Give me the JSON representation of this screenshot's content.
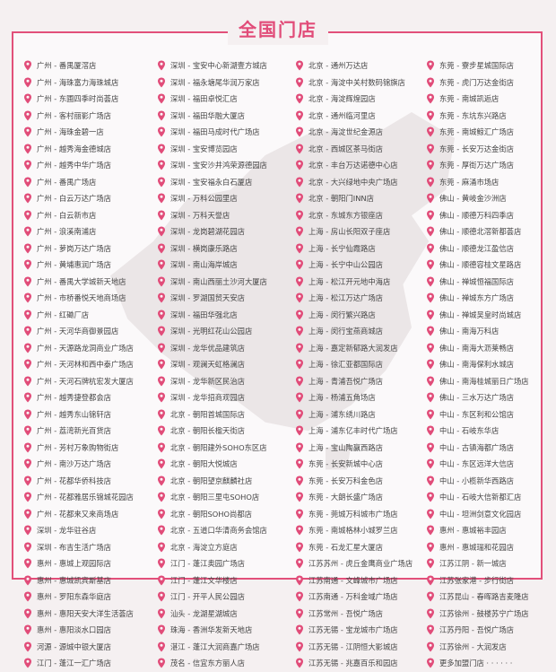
{
  "title": "全国门店",
  "icon": "map-pin-icon",
  "colors": {
    "accent": "#e14c79",
    "text": "#444444",
    "map": "#e9e4e5"
  },
  "columns": [
    [
      "广州 - 番禺厦滘店",
      "广州 - 海珠富力海珠城店",
      "广州 - 东圃四季时尚荟店",
      "广州 - 客村丽影广场店",
      "广州 - 海珠金碧一店",
      "广州 - 越秀海金德城店",
      "广州 - 越秀中华广场店",
      "广州 - 番禺广场店",
      "广州 - 白云万达广场店",
      "广州 - 白云新市店",
      "广州 - 浪溪南浦店",
      "广州 - 萝岗万达广场店",
      "广州 - 黄埔惠润广场店",
      "广州 - 番禺大学城新天地店",
      "广州 - 市桥番悦天地商场店",
      "广州 - 红磡厂店",
      "广州 - 天河华商御景园店",
      "广州 - 天源路龙洞商业广场店",
      "广州 - 天河林和西中泰广场店",
      "广州 - 天河石牌杭宏发大厦店",
      "广州 - 越秀捷登都会店",
      "广州 - 越秀东山锦轩店",
      "广州 - 荔湾新光百货店",
      "广州 - 芳村万象购物街店",
      "广州 - 南沙万达广场店",
      "广州 - 花都华侨科技店",
      "广州 - 花都雅居乐锦城花园店",
      "广州 - 花都来又来商场店",
      "深圳 - 龙华驻谷店",
      "深圳 - 布吉生活广场店",
      "惠州 - 惠城上观园际店",
      "惠州 - 惠城凯宾斯基店",
      "惠州 - 罗阳东森华庭店",
      "惠州 - 惠阳天安大洋生活荟店",
      "惠州 - 惠阳淡水口园店",
      "河源 - 源城中银大厦店",
      "江门 - 蓬江一汇广场店"
    ],
    [
      "深圳 - 宝安中心新湖壹方城店",
      "深圳 - 福永塘尾华润万家店",
      "深圳 - 福田卓悦汇店",
      "深圳 - 福田华融大厦店",
      "深圳 - 福田马成时代广场店",
      "深圳 - 宝安博览园店",
      "深圳 - 宝安沙井鸿荣源德园店",
      "深圳 - 宝安福永白石厦店",
      "深圳 - 万科公园里店",
      "深圳 - 万科天誉店",
      "深圳 - 龙岗碧湖花园店",
      "深圳 - 横岗康乐路店",
      "深圳 - 南山海岸城店",
      "深圳 - 南山西丽土沙河大厦店",
      "深圳 - 罗湖国贸天安店",
      "深圳 - 福田华强北店",
      "深圳 - 光明红花山公园店",
      "深圳 - 龙华优品建筑店",
      "深圳 - 观澜天虹格澜店",
      "深圳 - 龙华新区民治店",
      "深圳 - 龙华招商观园店",
      "北京 - 朝阳首城国际店",
      "北京 - 朝阳长楹天街店",
      "北京 - 朝阳建外SOHO东区店",
      "北京 - 朝阳大悦城店",
      "北京 - 朝阳望京麒麟社店",
      "北京 - 朝阳三里屯SOHO店",
      "北京 - 朝阳SOHO尚都店",
      "北京 - 五道口华清商务会馆店",
      "北京 - 海淀立方庭店",
      "江门 - 蓬江奥园广场店",
      "江门 - 蓬江文华楼店",
      "江门 - 开平人民公园店",
      "汕头 - 龙湖星湖城店",
      "珠海 - 香洲华发新天地店",
      "湛江 - 蓬江大润商嘉广场店",
      "茂名 - 信宜东方丽人店"
    ],
    [
      "北京 - 通州万达店",
      "北京 - 海淀中关村数码锦旗店",
      "北京 - 海淀辉煌园店",
      "北京 - 通州临河里店",
      "北京 - 海淀世纪金源店",
      "北京 - 西城区茶马街店",
      "北京 - 丰台万达诺德中心店",
      "北京 - 大兴绿地中央广场店",
      "北京 - 朝阳门INN店",
      "北京 - 东城东方银座店",
      "上海 - 房山长阳双子座店",
      "上海 - 长宁仙霞路店",
      "上海 - 长宁中山公园店",
      "上海 - 松江开元地中海店",
      "上海 - 松江万达广场店",
      "上海 - 闵行繁兴路店",
      "上海 - 闵行宝燕商城店",
      "上海 - 嘉定新郁路大润发店",
      "上海 - 徐汇亚都国际店",
      "上海 - 青浦吾悦广场店",
      "上海 - 杨浦五角场店",
      "上海 - 浦东绣川路店",
      "上海 - 浦东亿丰时代广场店",
      "上海 - 宝山陶赢西路店",
      "东莞 - 长安新城中心店",
      "东莞 - 长安万科金色店",
      "东莞 - 大朗长盛广场店",
      "东莞 - 莞城万科城市广场店",
      "东莞 - 南城格林小城罗兰店",
      "东莞 - 石龙汇星大厦店",
      "江苏苏州 - 虎丘金鹰商业广场店",
      "江苏南通 - 文峰城市广场店",
      "江苏南通 - 万科金域广场店",
      "江苏常州 - 吾悦广场店",
      "江苏无锡 - 宝龙城市广场店",
      "江苏无锡 - 江阴恒大影城店",
      "江苏无锡 - 兆嘉百乐和园店"
    ],
    [
      "东莞 - 寮步星城国际店",
      "东莞 - 虎门万达金街店",
      "东莞 - 南城凯逅店",
      "东莞 - 东坑东兴路店",
      "东莞 - 南城鲸汇广场店",
      "东莞 - 长安万达金街店",
      "东莞 - 厚街万达广场店",
      "东莞 - 麻涌市场店",
      "佛山 - 黄岐金沙洲店",
      "佛山 - 顺德万科四季店",
      "佛山 - 顺德北滘新都荟店",
      "佛山 - 顺德龙江盈信店",
      "佛山 - 顺德容桂文星路店",
      "佛山 - 禅城恒福国际店",
      "佛山 - 禅城东方广场店",
      "佛山 - 禅城吴皇时尚城店",
      "佛山 - 南海万科店",
      "佛山 - 南海大沥莱畅店",
      "佛山 - 南海保利水城店",
      "佛山 - 南海桂城丽日广场店",
      "佛山 - 三水万达广场店",
      "中山 - 东区利和公馆店",
      "中山 - 石岐东华店",
      "中山 - 古镇海都广场店",
      "中山 - 东区远洋大信店",
      "中山 - 小榄新华西路店",
      "中山 - 石岐大信新都汇店",
      "中山 - 坦洲剑意文化园店",
      "惠州 - 惠城裕丰园店",
      "惠州 - 惠城瑞和花园店",
      "江苏江阴 - 新一城店",
      "江苏张家港 - 步行街店",
      "江苏昆山 - 春晖路吉麦隆店",
      "江苏徐州 - 鼓楼苏宁广场店",
      "江苏丹阳 - 吾悦广场店",
      "江苏徐州 - 大润发店",
      "更多加盟门店 · · · · · ·"
    ]
  ]
}
